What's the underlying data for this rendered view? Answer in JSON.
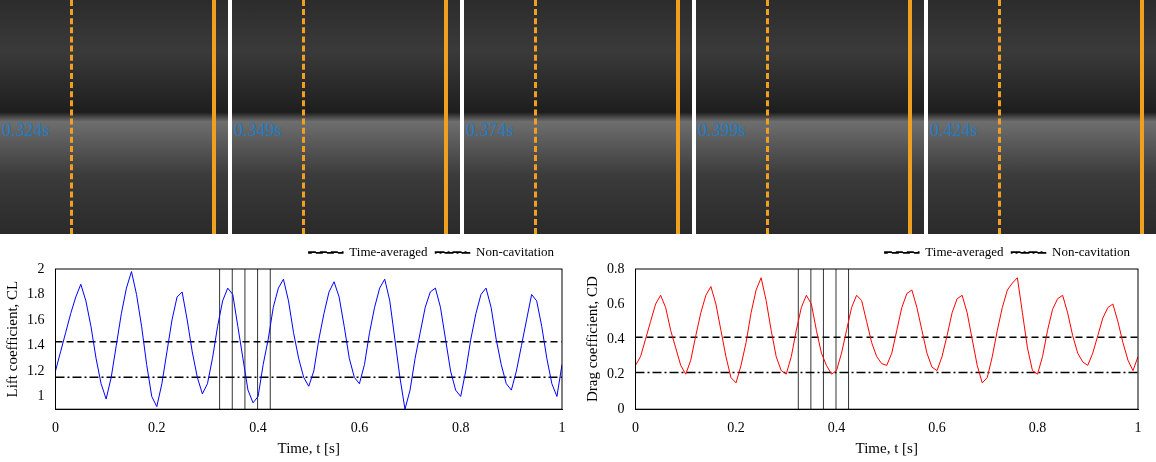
{
  "frames": [
    {
      "label": "0.324s"
    },
    {
      "label": "0.349s"
    },
    {
      "label": "0.374s"
    },
    {
      "label": "0.399s"
    },
    {
      "label": "0.424s"
    }
  ],
  "chart_data": [
    {
      "type": "line",
      "x_label": "Time, t [s]",
      "y_label": "Lift coefficient, CL",
      "x": [
        0,
        0.01,
        0.02,
        0.03,
        0.04,
        0.05,
        0.06,
        0.07,
        0.08,
        0.09,
        0.1,
        0.11,
        0.12,
        0.13,
        0.14,
        0.15,
        0.16,
        0.17,
        0.18,
        0.19,
        0.2,
        0.21,
        0.22,
        0.23,
        0.24,
        0.25,
        0.26,
        0.27,
        0.28,
        0.29,
        0.3,
        0.31,
        0.32,
        0.33,
        0.34,
        0.35,
        0.36,
        0.37,
        0.38,
        0.39,
        0.4,
        0.41,
        0.42,
        0.43,
        0.44,
        0.45,
        0.46,
        0.47,
        0.48,
        0.49,
        0.5,
        0.51,
        0.52,
        0.53,
        0.54,
        0.55,
        0.56,
        0.57,
        0.58,
        0.59,
        0.6,
        0.61,
        0.62,
        0.63,
        0.64,
        0.65,
        0.66,
        0.67,
        0.68,
        0.69,
        0.7,
        0.71,
        0.72,
        0.73,
        0.74,
        0.75,
        0.76,
        0.77,
        0.78,
        0.79,
        0.8,
        0.81,
        0.82,
        0.83,
        0.84,
        0.85,
        0.86,
        0.87,
        0.88,
        0.89,
        0.9,
        0.91,
        0.92,
        0.93,
        0.94,
        0.95,
        0.96,
        0.97,
        0.98,
        0.99,
        1
      ],
      "series": [
        {
          "color": "#0000ff",
          "line_style": "solid",
          "values": [
            1.2,
            1.35,
            1.5,
            1.65,
            1.78,
            1.88,
            1.75,
            1.55,
            1.3,
            1.1,
            0.98,
            1.15,
            1.4,
            1.65,
            1.85,
            1.98,
            1.8,
            1.55,
            1.25,
            1.0,
            0.92,
            1.1,
            1.35,
            1.6,
            1.78,
            1.82,
            1.6,
            1.35,
            1.15,
            1.02,
            1.1,
            1.3,
            1.55,
            1.75,
            1.85,
            1.8,
            1.55,
            1.3,
            1.05,
            0.95,
            1.0,
            1.25,
            1.45,
            1.7,
            1.85,
            1.92,
            1.75,
            1.5,
            1.3,
            1.15,
            1.08,
            1.2,
            1.45,
            1.65,
            1.82,
            1.9,
            1.78,
            1.55,
            1.3,
            1.15,
            1.1,
            1.25,
            1.5,
            1.7,
            1.85,
            1.92,
            1.75,
            1.45,
            1.15,
            0.9,
            1.05,
            1.3,
            1.5,
            1.7,
            1.82,
            1.85,
            1.7,
            1.45,
            1.2,
            1.05,
            1.0,
            1.2,
            1.45,
            1.65,
            1.8,
            1.85,
            1.7,
            1.45,
            1.25,
            1.1,
            1.05,
            1.2,
            1.4,
            1.6,
            1.8,
            1.75,
            1.55,
            1.3,
            1.1,
            1.0,
            1.25
          ]
        }
      ],
      "hlines": [
        {
          "name": "Time-averaged",
          "value": 1.43,
          "color": "#000000",
          "line_style": "dashed"
        },
        {
          "name": "Non-cavitation",
          "value": 1.15,
          "color": "#000000",
          "line_style": "dashdot"
        }
      ],
      "vlines": [
        0.324,
        0.349,
        0.374,
        0.399,
        0.424
      ],
      "xlim": [
        0,
        1
      ],
      "xticks": [
        0,
        0.2,
        0.4,
        0.6,
        0.8,
        1
      ],
      "ylim": [
        0.9,
        2
      ],
      "yticks": [
        1,
        1.2,
        1.4,
        1.6,
        1.8,
        2
      ],
      "grid": false,
      "legend": "top right"
    },
    {
      "type": "line",
      "x_label": "Time, t [s]",
      "y_label": "Drag coefficient, CD",
      "x": [
        0,
        0.01,
        0.02,
        0.03,
        0.04,
        0.05,
        0.06,
        0.07,
        0.08,
        0.09,
        0.1,
        0.11,
        0.12,
        0.13,
        0.14,
        0.15,
        0.16,
        0.17,
        0.18,
        0.19,
        0.2,
        0.21,
        0.22,
        0.23,
        0.24,
        0.25,
        0.26,
        0.27,
        0.28,
        0.29,
        0.3,
        0.31,
        0.32,
        0.33,
        0.34,
        0.35,
        0.36,
        0.37,
        0.38,
        0.39,
        0.4,
        0.41,
        0.42,
        0.43,
        0.44,
        0.45,
        0.46,
        0.47,
        0.48,
        0.49,
        0.5,
        0.51,
        0.52,
        0.53,
        0.54,
        0.55,
        0.56,
        0.57,
        0.58,
        0.59,
        0.6,
        0.61,
        0.62,
        0.63,
        0.64,
        0.65,
        0.66,
        0.67,
        0.68,
        0.69,
        0.7,
        0.71,
        0.72,
        0.73,
        0.74,
        0.75,
        0.76,
        0.77,
        0.78,
        0.79,
        0.8,
        0.81,
        0.82,
        0.83,
        0.84,
        0.85,
        0.86,
        0.87,
        0.88,
        0.89,
        0.9,
        0.91,
        0.92,
        0.93,
        0.94,
        0.95,
        0.96,
        0.97,
        0.98,
        0.99,
        1
      ],
      "series": [
        {
          "color": "#ff0000",
          "line_style": "solid",
          "values": [
            0.25,
            0.3,
            0.4,
            0.5,
            0.6,
            0.65,
            0.58,
            0.45,
            0.35,
            0.25,
            0.2,
            0.28,
            0.42,
            0.55,
            0.65,
            0.7,
            0.6,
            0.45,
            0.3,
            0.18,
            0.15,
            0.25,
            0.38,
            0.55,
            0.68,
            0.75,
            0.62,
            0.45,
            0.3,
            0.22,
            0.2,
            0.3,
            0.45,
            0.58,
            0.65,
            0.6,
            0.45,
            0.32,
            0.25,
            0.2,
            0.22,
            0.32,
            0.45,
            0.58,
            0.65,
            0.62,
            0.5,
            0.38,
            0.3,
            0.26,
            0.25,
            0.32,
            0.45,
            0.58,
            0.66,
            0.68,
            0.58,
            0.45,
            0.32,
            0.24,
            0.22,
            0.3,
            0.42,
            0.55,
            0.63,
            0.65,
            0.55,
            0.4,
            0.25,
            0.15,
            0.18,
            0.3,
            0.45,
            0.58,
            0.68,
            0.72,
            0.75,
            0.55,
            0.35,
            0.22,
            0.2,
            0.3,
            0.45,
            0.57,
            0.63,
            0.65,
            0.55,
            0.42,
            0.32,
            0.27,
            0.25,
            0.32,
            0.42,
            0.52,
            0.58,
            0.6,
            0.5,
            0.38,
            0.28,
            0.22,
            0.3
          ]
        }
      ],
      "hlines": [
        {
          "name": "Time-averaged",
          "value": 0.41,
          "color": "#000000",
          "line_style": "dashed"
        },
        {
          "name": "Non-cavitation",
          "value": 0.21,
          "color": "#000000",
          "line_style": "dashdot"
        }
      ],
      "vlines": [
        0.324,
        0.349,
        0.374,
        0.399,
        0.424
      ],
      "xlim": [
        0,
        1
      ],
      "xticks": [
        0,
        0.2,
        0.4,
        0.6,
        0.8,
        1
      ],
      "ylim": [
        0,
        0.8
      ],
      "yticks": [
        0,
        0.2,
        0.4,
        0.6,
        0.8
      ],
      "grid": false,
      "legend": "top right"
    }
  ]
}
